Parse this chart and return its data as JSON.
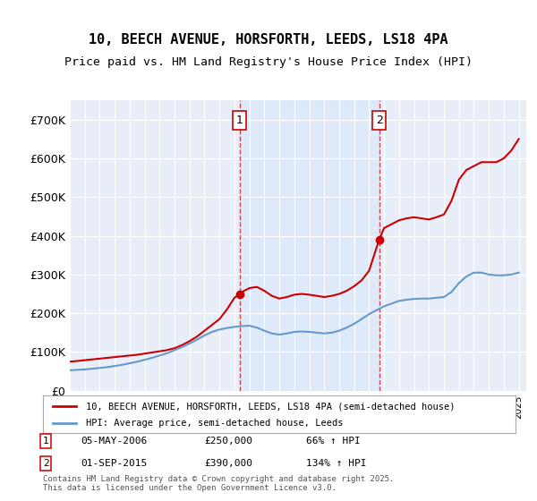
{
  "title_line1": "10, BEECH AVENUE, HORSFORTH, LEEDS, LS18 4PA",
  "title_line2": "Price paid vs. HM Land Registry's House Price Index (HPI)",
  "ylabel": "",
  "background_color": "#ffffff",
  "plot_bg_color": "#e8eef8",
  "grid_color": "#ffffff",
  "legend_label_red": "10, BEECH AVENUE, HORSFORTH, LEEDS, LS18 4PA (semi-detached house)",
  "legend_label_blue": "HPI: Average price, semi-detached house, Leeds",
  "footnote": "Contains HM Land Registry data © Crown copyright and database right 2025.\nThis data is licensed under the Open Government Licence v3.0.",
  "marker1_date": "05-MAY-2006",
  "marker1_price": 250000,
  "marker1_hpi": "66% ↑ HPI",
  "marker1_x": 2006.34,
  "marker2_date": "01-SEP-2015",
  "marker2_price": 390000,
  "marker2_hpi": "134% ↑ HPI",
  "marker2_x": 2015.67,
  "red_line_x": [
    1995,
    1995.5,
    1996,
    1996.5,
    1997,
    1997.5,
    1998,
    1998.5,
    1999,
    1999.5,
    2000,
    2000.5,
    2001,
    2001.5,
    2002,
    2002.5,
    2003,
    2003.5,
    2004,
    2004.5,
    2005,
    2005.5,
    2006,
    2006.34,
    2006.5,
    2007,
    2007.5,
    2008,
    2008.5,
    2009,
    2009.5,
    2010,
    2010.5,
    2011,
    2011.5,
    2012,
    2012.5,
    2013,
    2013.5,
    2014,
    2014.5,
    2015,
    2015.67,
    2016,
    2016.5,
    2017,
    2017.5,
    2018,
    2018.5,
    2019,
    2019.5,
    2020,
    2020.5,
    2021,
    2021.5,
    2022,
    2022.5,
    2023,
    2023.5,
    2024,
    2024.5,
    2025
  ],
  "red_line_y": [
    75000,
    77000,
    79000,
    81000,
    83000,
    85000,
    87000,
    89000,
    91000,
    93000,
    96000,
    99000,
    102000,
    105000,
    110000,
    118000,
    128000,
    140000,
    155000,
    170000,
    185000,
    210000,
    240000,
    250000,
    255000,
    265000,
    268000,
    258000,
    245000,
    238000,
    242000,
    248000,
    250000,
    248000,
    245000,
    242000,
    245000,
    250000,
    258000,
    270000,
    285000,
    310000,
    390000,
    420000,
    430000,
    440000,
    445000,
    448000,
    445000,
    442000,
    448000,
    455000,
    490000,
    545000,
    570000,
    580000,
    590000,
    590000,
    590000,
    600000,
    620000,
    650000
  ],
  "blue_line_x": [
    1995,
    1995.5,
    1996,
    1996.5,
    1997,
    1997.5,
    1998,
    1998.5,
    1999,
    1999.5,
    2000,
    2000.5,
    2001,
    2001.5,
    2002,
    2002.5,
    2003,
    2003.5,
    2004,
    2004.5,
    2005,
    2005.5,
    2006,
    2006.5,
    2007,
    2007.5,
    2008,
    2008.5,
    2009,
    2009.5,
    2010,
    2010.5,
    2011,
    2011.5,
    2012,
    2012.5,
    2013,
    2013.5,
    2014,
    2014.5,
    2015,
    2015.5,
    2016,
    2016.5,
    2017,
    2017.5,
    2018,
    2018.5,
    2019,
    2019.5,
    2020,
    2020.5,
    2021,
    2021.5,
    2022,
    2022.5,
    2023,
    2023.5,
    2024,
    2024.5,
    2025
  ],
  "blue_line_y": [
    53000,
    54000,
    55000,
    57000,
    59000,
    61000,
    64000,
    67000,
    71000,
    75000,
    80000,
    85000,
    91000,
    97000,
    105000,
    113000,
    122000,
    132000,
    143000,
    152000,
    158000,
    162000,
    165000,
    167000,
    168000,
    163000,
    155000,
    148000,
    145000,
    148000,
    152000,
    153000,
    152000,
    150000,
    148000,
    150000,
    155000,
    163000,
    173000,
    185000,
    198000,
    208000,
    218000,
    225000,
    232000,
    235000,
    237000,
    238000,
    238000,
    240000,
    242000,
    255000,
    278000,
    295000,
    305000,
    305000,
    300000,
    298000,
    298000,
    300000,
    305000
  ],
  "ylim": [
    0,
    750000
  ],
  "xlim": [
    1995,
    2025.5
  ],
  "yticks": [
    0,
    100000,
    200000,
    300000,
    400000,
    500000,
    600000,
    700000
  ],
  "ytick_labels": [
    "£0",
    "£100K",
    "£200K",
    "£300K",
    "£400K",
    "£500K",
    "£600K",
    "£700K"
  ]
}
